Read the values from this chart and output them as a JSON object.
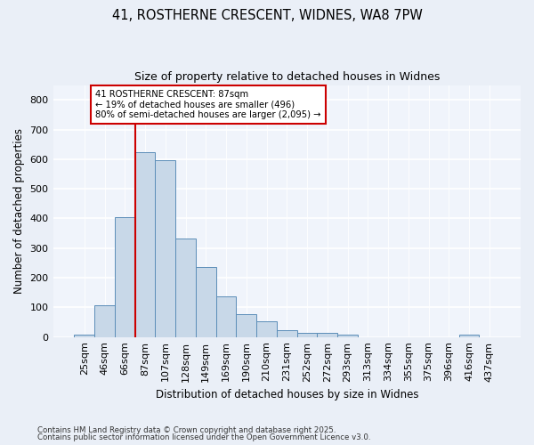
{
  "title1": "41, ROSTHERNE CRESCENT, WIDNES, WA8 7PW",
  "title2": "Size of property relative to detached houses in Widnes",
  "xlabel": "Distribution of detached houses by size in Widnes",
  "ylabel": "Number of detached properties",
  "categories": [
    "25sqm",
    "46sqm",
    "66sqm",
    "87sqm",
    "107sqm",
    "128sqm",
    "149sqm",
    "169sqm",
    "190sqm",
    "210sqm",
    "231sqm",
    "252sqm",
    "272sqm",
    "293sqm",
    "313sqm",
    "334sqm",
    "355sqm",
    "375sqm",
    "396sqm",
    "416sqm",
    "437sqm"
  ],
  "values": [
    8,
    108,
    403,
    622,
    596,
    333,
    236,
    137,
    78,
    52,
    22,
    15,
    15,
    8,
    0,
    0,
    0,
    0,
    0,
    8,
    0
  ],
  "bar_color": "#c8d8e8",
  "bar_edge_color": "#5b8db8",
  "red_line_index": 3,
  "annotation_text": "41 ROSTHERNE CRESCENT: 87sqm\n← 19% of detached houses are smaller (496)\n80% of semi-detached houses are larger (2,095) →",
  "annotation_box_color": "#ffffff",
  "annotation_box_edge_color": "#cc0000",
  "ylim": [
    0,
    850
  ],
  "yticks": [
    0,
    100,
    200,
    300,
    400,
    500,
    600,
    700,
    800
  ],
  "footnote1": "Contains HM Land Registry data © Crown copyright and database right 2025.",
  "footnote2": "Contains public sector information licensed under the Open Government Licence v3.0.",
  "bg_color": "#eaeff7",
  "plot_bg_color": "#f0f4fb"
}
